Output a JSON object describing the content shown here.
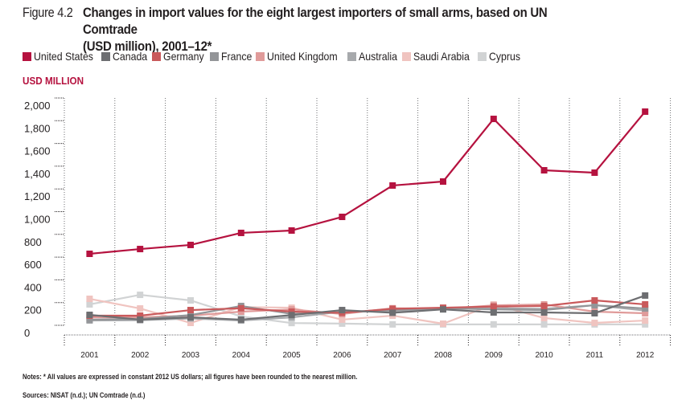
{
  "figure": {
    "number": "Figure 4.2",
    "title_line1": "Changes in import values for the eight largest importers of small arms, based on UN Comtrade",
    "title_line2": "(USD million), 2001–12*"
  },
  "notes": "Notes: * All values are expressed in constant 2012 US dollars; all figures have been rounded to the nearest million.",
  "sources": "Sources: NISAT (n.d.); UN Comtrade (n.d.)",
  "chart_data": {
    "type": "line",
    "title": "Changes in import values for the eight largest importers of small arms, based on UN Comtrade (USD million), 2001–12*",
    "ylabel": "USD MILLION",
    "xlabel": "",
    "ylim": [
      0,
      2000
    ],
    "yticks": [
      0,
      200,
      400,
      600,
      800,
      1000,
      1200,
      1400,
      1600,
      1800,
      2000
    ],
    "ytick_labels": [
      "0",
      "200",
      "400",
      "600",
      "800",
      "1,000",
      "1,200",
      "1,400",
      "1,600",
      "1,800",
      "2,000"
    ],
    "x": [
      "2001",
      "2002",
      "2003",
      "2004",
      "2005",
      "2006",
      "2007",
      "2008",
      "2009",
      "2010",
      "2011",
      "2012"
    ],
    "grid": "vertical dotted",
    "legend_position": "top",
    "series": [
      {
        "name": "United States",
        "color": "#b5123f",
        "values": [
          629,
          671,
          707,
          813,
          834,
          954,
          1230,
          1265,
          1816,
          1364,
          1343,
          1880
        ]
      },
      {
        "name": "Canada",
        "color": "#6d6e71",
        "values": [
          92,
          50,
          70,
          50,
          90,
          134,
          110,
          140,
          113,
          113,
          106,
          262
        ]
      },
      {
        "name": "Germany",
        "color": "#c9595b",
        "values": [
          85,
          85,
          134,
          150,
          120,
          110,
          145,
          155,
          165,
          170,
          219,
          184
        ]
      },
      {
        "name": "France",
        "color": "#939598",
        "values": [
          50,
          55,
          90,
          170,
          100,
          113,
          135,
          150,
          140,
          134,
          177,
          148
        ]
      },
      {
        "name": "United Kingdom",
        "color": "#e09b9a",
        "values": [
          70,
          70,
          85,
          120,
          140,
          100,
          150,
          145,
          175,
          184,
          120,
          106
        ]
      },
      {
        "name": "Australia",
        "color": "#a7a9ac",
        "values": [
          42,
          45,
          60,
          42,
          70,
          120,
          125,
          150,
          150,
          145,
          177,
          130
        ]
      },
      {
        "name": "Saudi Arabia",
        "color": "#f0c4c0",
        "values": [
          233,
          148,
          21,
          160,
          155,
          50,
          85,
          14,
          184,
          64,
          21,
          42
        ]
      },
      {
        "name": "Cyprus",
        "color": "#d1d3d4",
        "values": [
          184,
          268,
          219,
          78,
          20,
          15,
          8,
          8,
          8,
          8,
          8,
          8
        ]
      }
    ]
  }
}
